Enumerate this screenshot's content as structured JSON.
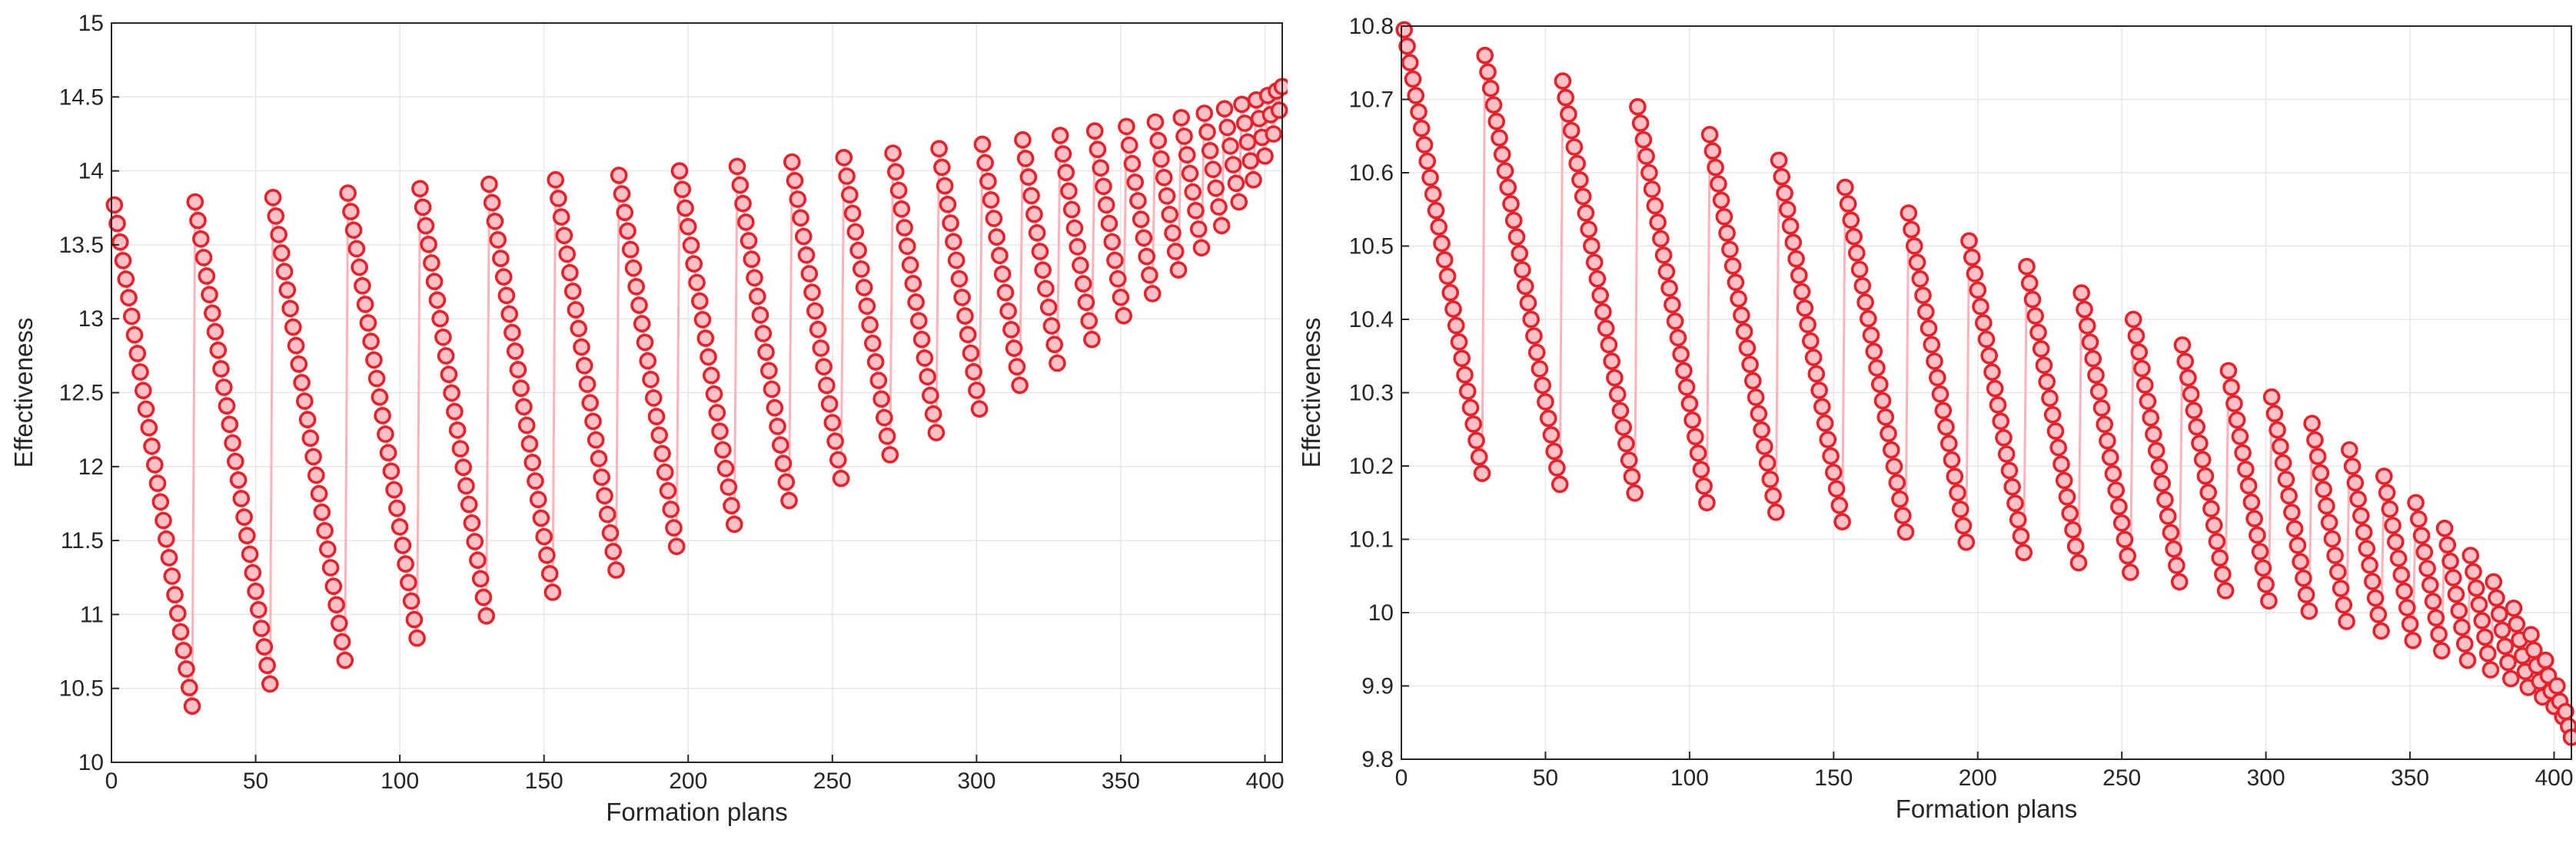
{
  "charts": [
    {
      "id": "left",
      "type": "scatter-line",
      "xlabel": "Formation plans",
      "ylabel": "Effectiveness",
      "xlim": [
        0,
        406
      ],
      "ylim": [
        10,
        15
      ],
      "xticks": [
        0,
        50,
        100,
        150,
        200,
        250,
        300,
        350,
        400
      ],
      "yticks": [
        10,
        10.5,
        11,
        11.5,
        12,
        12.5,
        13,
        13.5,
        14,
        14.5,
        15
      ],
      "ytick_labels": [
        "10",
        "10.5",
        "11",
        "11.5",
        "12",
        "12.5",
        "13",
        "13.5",
        "14",
        "14.5",
        "15"
      ],
      "grid": true,
      "series_color": "#e8202a",
      "marker": "circle",
      "segments": [
        {
          "x_start": 1,
          "x_end": 28,
          "y_start": 13.77,
          "y_end": 10.38
        },
        {
          "x_start": 29,
          "x_end": 55,
          "y_start": 13.79,
          "y_end": 10.53
        },
        {
          "x_start": 56,
          "x_end": 81,
          "y_start": 13.82,
          "y_end": 10.69
        },
        {
          "x_start": 82,
          "x_end": 106,
          "y_start": 13.85,
          "y_end": 10.84
        },
        {
          "x_start": 107,
          "x_end": 130,
          "y_start": 13.88,
          "y_end": 10.99
        },
        {
          "x_start": 131,
          "x_end": 153,
          "y_start": 13.91,
          "y_end": 11.15
        },
        {
          "x_start": 154,
          "x_end": 175,
          "y_start": 13.94,
          "y_end": 11.3
        },
        {
          "x_start": 176,
          "x_end": 196,
          "y_start": 13.97,
          "y_end": 11.46
        },
        {
          "x_start": 197,
          "x_end": 216,
          "y_start": 14.0,
          "y_end": 11.61
        },
        {
          "x_start": 217,
          "x_end": 235,
          "y_start": 14.03,
          "y_end": 11.77
        },
        {
          "x_start": 236,
          "x_end": 253,
          "y_start": 14.06,
          "y_end": 11.92
        },
        {
          "x_start": 254,
          "x_end": 270,
          "y_start": 14.09,
          "y_end": 12.08
        },
        {
          "x_start": 271,
          "x_end": 286,
          "y_start": 14.12,
          "y_end": 12.23
        },
        {
          "x_start": 287,
          "x_end": 301,
          "y_start": 14.15,
          "y_end": 12.39
        },
        {
          "x_start": 302,
          "x_end": 315,
          "y_start": 14.18,
          "y_end": 12.55
        },
        {
          "x_start": 316,
          "x_end": 328,
          "y_start": 14.21,
          "y_end": 12.7
        },
        {
          "x_start": 329,
          "x_end": 340,
          "y_start": 14.24,
          "y_end": 12.86
        },
        {
          "x_start": 341,
          "x_end": 351,
          "y_start": 14.27,
          "y_end": 13.02
        },
        {
          "x_start": 352,
          "x_end": 361,
          "y_start": 14.3,
          "y_end": 13.17
        },
        {
          "x_start": 362,
          "x_end": 370,
          "y_start": 14.33,
          "y_end": 13.33
        },
        {
          "x_start": 371,
          "x_end": 378,
          "y_start": 14.36,
          "y_end": 13.48
        },
        {
          "x_start": 379,
          "x_end": 385,
          "y_start": 14.39,
          "y_end": 13.63
        },
        {
          "x_start": 386,
          "x_end": 391,
          "y_start": 14.42,
          "y_end": 13.79
        },
        {
          "x_start": 392,
          "x_end": 396,
          "y_start": 14.45,
          "y_end": 13.94
        },
        {
          "x_start": 397,
          "x_end": 400,
          "y_start": 14.48,
          "y_end": 14.1
        },
        {
          "x_start": 401,
          "x_end": 403,
          "y_start": 14.51,
          "y_end": 14.25
        },
        {
          "x_start": 404,
          "x_end": 405,
          "y_start": 14.54,
          "y_end": 14.41
        },
        {
          "x_start": 406,
          "x_end": 406,
          "y_start": 14.57,
          "y_end": 14.57
        }
      ]
    },
    {
      "id": "right",
      "type": "scatter-line",
      "xlabel": "Formation plans",
      "ylabel": "Effectiveness",
      "xlim": [
        0,
        406
      ],
      "ylim": [
        9.8,
        10.8
      ],
      "xticks": [
        0,
        50,
        100,
        150,
        200,
        250,
        300,
        350,
        400
      ],
      "yticks": [
        9.8,
        9.9,
        10,
        10.1,
        10.2,
        10.3,
        10.4,
        10.5,
        10.6,
        10.7,
        10.8
      ],
      "ytick_labels": [
        "9.8",
        "9.9",
        "10",
        "10.1",
        "10.2",
        "10.3",
        "10.4",
        "10.5",
        "10.6",
        "10.7",
        "10.8"
      ],
      "grid": true,
      "series_color": "#e8202a",
      "marker": "circle",
      "segments": [
        {
          "x_start": 1,
          "x_end": 28,
          "y_start": 10.795,
          "y_end": 10.19
        },
        {
          "x_start": 29,
          "x_end": 55,
          "y_start": 10.76,
          "y_end": 10.175
        },
        {
          "x_start": 56,
          "x_end": 81,
          "y_start": 10.725,
          "y_end": 10.163
        },
        {
          "x_start": 82,
          "x_end": 106,
          "y_start": 10.69,
          "y_end": 10.15
        },
        {
          "x_start": 107,
          "x_end": 130,
          "y_start": 10.652,
          "y_end": 10.137
        },
        {
          "x_start": 131,
          "x_end": 153,
          "y_start": 10.617,
          "y_end": 10.124
        },
        {
          "x_start": 154,
          "x_end": 175,
          "y_start": 10.58,
          "y_end": 10.11
        },
        {
          "x_start": 176,
          "x_end": 196,
          "y_start": 10.545,
          "y_end": 10.096
        },
        {
          "x_start": 197,
          "x_end": 216,
          "y_start": 10.507,
          "y_end": 10.082
        },
        {
          "x_start": 217,
          "x_end": 235,
          "y_start": 10.472,
          "y_end": 10.068
        },
        {
          "x_start": 236,
          "x_end": 253,
          "y_start": 10.436,
          "y_end": 10.055
        },
        {
          "x_start": 254,
          "x_end": 270,
          "y_start": 10.4,
          "y_end": 10.042
        },
        {
          "x_start": 271,
          "x_end": 286,
          "y_start": 10.365,
          "y_end": 10.03
        },
        {
          "x_start": 287,
          "x_end": 301,
          "y_start": 10.33,
          "y_end": 10.016
        },
        {
          "x_start": 302,
          "x_end": 315,
          "y_start": 10.294,
          "y_end": 10.002
        },
        {
          "x_start": 316,
          "x_end": 328,
          "y_start": 10.258,
          "y_end": 9.988
        },
        {
          "x_start": 329,
          "x_end": 340,
          "y_start": 10.222,
          "y_end": 9.975
        },
        {
          "x_start": 341,
          "x_end": 351,
          "y_start": 10.186,
          "y_end": 9.962
        },
        {
          "x_start": 352,
          "x_end": 361,
          "y_start": 10.15,
          "y_end": 9.948
        },
        {
          "x_start": 362,
          "x_end": 370,
          "y_start": 10.115,
          "y_end": 9.935
        },
        {
          "x_start": 371,
          "x_end": 378,
          "y_start": 10.078,
          "y_end": 9.922
        },
        {
          "x_start": 379,
          "x_end": 385,
          "y_start": 10.042,
          "y_end": 9.91
        },
        {
          "x_start": 386,
          "x_end": 391,
          "y_start": 10.006,
          "y_end": 9.898
        },
        {
          "x_start": 392,
          "x_end": 396,
          "y_start": 9.97,
          "y_end": 9.885
        },
        {
          "x_start": 397,
          "x_end": 400,
          "y_start": 9.935,
          "y_end": 9.872
        },
        {
          "x_start": 401,
          "x_end": 403,
          "y_start": 9.9,
          "y_end": 9.858
        },
        {
          "x_start": 404,
          "x_end": 405,
          "y_start": 9.865,
          "y_end": 9.845
        },
        {
          "x_start": 406,
          "x_end": 406,
          "y_start": 9.83,
          "y_end": 9.83
        }
      ]
    }
  ]
}
